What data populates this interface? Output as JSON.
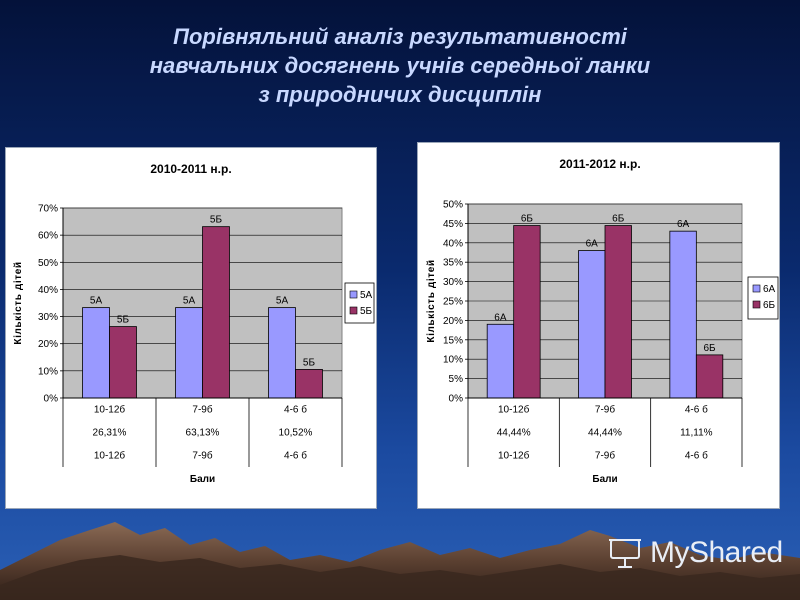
{
  "slide": {
    "title_lines": [
      "Порівняльний аналіз результативності",
      "навчальних  досягнень  учнів середньої ланки",
      "з природничих дисциплін"
    ],
    "watermark": "MyShared"
  },
  "chart_data": [
    {
      "type": "bar",
      "title": "2010-2011 н.р.",
      "ylabel": "Кількість дітей",
      "xlabel": "Бали",
      "ylim": [
        0,
        70
      ],
      "yticks": [
        "0%",
        "10%",
        "20%",
        "30%",
        "40%",
        "50%",
        "60%",
        "70%"
      ],
      "ytick_values": [
        0,
        10,
        20,
        30,
        40,
        50,
        60,
        70
      ],
      "categories": [
        "10-12б",
        "7-9б",
        "4-6 б"
      ],
      "series": [
        {
          "name": "5А",
          "values": [
            33.3,
            33.3,
            33.3
          ],
          "color": "#9999ff",
          "labels": [
            "5А",
            "5А",
            "5А"
          ]
        },
        {
          "name": "5Б",
          "values": [
            26.31,
            63.13,
            10.52
          ],
          "color": "#993366",
          "labels": [
            "5Б",
            "5Б",
            "5Б"
          ]
        }
      ],
      "table_rows": [
        [
          "10-12б",
          "7-9б",
          "4-6 б"
        ],
        [
          "26,31%",
          "63,13%",
          "10,52%"
        ],
        [
          "10-12б",
          "7-9б",
          "4-6 б"
        ]
      ],
      "grid": true,
      "legend": "right",
      "plot_bg": "#c0c0c0"
    },
    {
      "type": "bar",
      "title": "2011-2012 н.р.",
      "ylabel": "Кількість дітей",
      "xlabel": "Бали",
      "ylim": [
        0,
        50
      ],
      "yticks": [
        "0%",
        "5%",
        "10%",
        "15%",
        "20%",
        "25%",
        "30%",
        "35%",
        "40%",
        "45%",
        "50%"
      ],
      "ytick_values": [
        0,
        5,
        10,
        15,
        20,
        25,
        30,
        35,
        40,
        45,
        50
      ],
      "categories": [
        "10-12б",
        "7-9б",
        "4-6 б"
      ],
      "series": [
        {
          "name": "6А",
          "values": [
            19,
            38,
            43
          ],
          "color": "#9999ff",
          "labels": [
            "6А",
            "6А",
            "6А"
          ]
        },
        {
          "name": "6Б",
          "values": [
            44.44,
            44.44,
            11.11
          ],
          "color": "#993366",
          "labels": [
            "6Б",
            "6Б",
            "6Б"
          ]
        }
      ],
      "table_rows": [
        [
          "10-12б",
          "7-9б",
          "4-6 б"
        ],
        [
          "44,44%",
          "44,44%",
          "11,11%"
        ],
        [
          "10-12б",
          "7-9б",
          "4-6 б"
        ]
      ],
      "grid": true,
      "legend": "right",
      "plot_bg": "#c0c0c0"
    }
  ]
}
